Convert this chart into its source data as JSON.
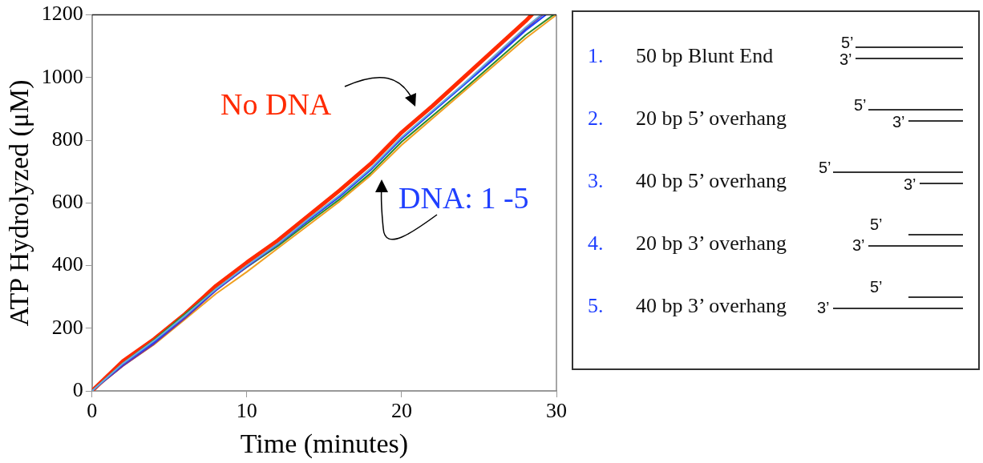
{
  "chart_data": {
    "type": "line",
    "xlabel": "Time (minutes)",
    "ylabel": "ATP Hydrolyzed (μM)",
    "xlim": [
      0,
      30
    ],
    "xticks": [
      0,
      10,
      20,
      30
    ],
    "ylim": [
      0,
      1200
    ],
    "yticks": [
      0,
      200,
      400,
      600,
      800,
      1000,
      1200
    ],
    "grid": false,
    "legend": false,
    "marker": "none",
    "line_style": "solid",
    "series": [
      {
        "color": "#ff2a00",
        "x": [
          0,
          2,
          4,
          6,
          8,
          10,
          12,
          14,
          16,
          18,
          20,
          22,
          24,
          26,
          28,
          28.4
        ],
        "values": [
          0,
          95,
          165,
          245,
          335,
          410,
          480,
          560,
          640,
          725,
          825,
          910,
          1000,
          1090,
          1180,
          1200
        ]
      },
      {
        "color": "#6aaed6",
        "x": [
          0,
          2,
          4,
          6,
          8,
          10,
          12,
          14,
          16,
          18,
          20,
          22,
          24,
          26,
          28,
          29.0
        ],
        "values": [
          0,
          88,
          160,
          240,
          325,
          400,
          470,
          550,
          625,
          710,
          810,
          895,
          980,
          1070,
          1160,
          1200
        ]
      },
      {
        "color": "#1f3fff",
        "x": [
          0,
          2,
          4,
          6,
          8,
          10,
          12,
          14,
          16,
          18,
          20,
          22,
          24,
          26,
          28,
          29.3
        ],
        "values": [
          0,
          85,
          155,
          238,
          322,
          398,
          468,
          545,
          620,
          705,
          805,
          890,
          975,
          1060,
          1150,
          1200
        ]
      },
      {
        "color": "#7030a0",
        "x": [
          0,
          2,
          4,
          6,
          8,
          10,
          12,
          14,
          16,
          18,
          20,
          22,
          24,
          26,
          28,
          29.1
        ],
        "values": [
          0,
          80,
          150,
          232,
          320,
          396,
          468,
          545,
          622,
          708,
          805,
          892,
          978,
          1064,
          1155,
          1200
        ]
      },
      {
        "color": "#2a8a2a",
        "x": [
          0,
          2,
          4,
          6,
          8,
          10,
          12,
          14,
          16,
          18,
          20,
          22,
          24,
          26,
          28,
          29.8
        ],
        "values": [
          0,
          88,
          162,
          245,
          325,
          395,
          462,
          538,
          612,
          695,
          795,
          878,
          962,
          1048,
          1135,
          1200
        ]
      },
      {
        "color": "#f0a020",
        "x": [
          0,
          2,
          4,
          6,
          8,
          10,
          12,
          14,
          16,
          18,
          20,
          22,
          24,
          26,
          28,
          30
        ],
        "values": [
          0,
          80,
          148,
          228,
          310,
          380,
          455,
          530,
          605,
          688,
          785,
          870,
          955,
          1040,
          1125,
          1200
        ]
      }
    ],
    "annotations": [
      "No DNA",
      "DNA: 1 -5",
      "1.",
      "50 bp Blunt End",
      "5’",
      "3’",
      "2.",
      "20 bp 5’ overhang",
      "5’",
      "3’",
      "3.",
      "40 bp 5’ overhang",
      "5’",
      "3’",
      "4.",
      "20 bp 3’ overhang",
      "5’",
      "3’",
      "5.",
      "40 bp 3’ overhang",
      "5’",
      "3’"
    ]
  }
}
